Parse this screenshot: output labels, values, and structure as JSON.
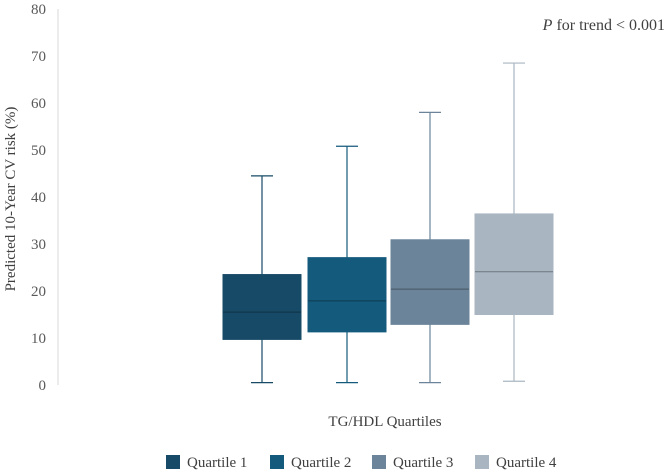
{
  "chart_data": {
    "type": "boxplot",
    "title": "",
    "xlabel": "TG/HDL Quartiles",
    "ylabel": "Predicted 10-Year CV risk (%)",
    "ylim": [
      0,
      80
    ],
    "yticks": [
      "0",
      "10",
      "20",
      "30",
      "40",
      "50",
      "60",
      "70",
      "80"
    ],
    "yticks_values": [
      0,
      10,
      20,
      30,
      40,
      50,
      60,
      70,
      80
    ],
    "grid": false,
    "legend_position": "bottom",
    "annotation": {
      "italic": "P",
      "rest": " for trend < 0.001"
    },
    "series": [
      {
        "name": "Quartile 1",
        "color": "#174a66",
        "min": 0.5,
        "q1": 9.7,
        "median": 15.5,
        "q3": 23.5,
        "max": 44.5
      },
      {
        "name": "Quartile 2",
        "color": "#145a7c",
        "min": 0.5,
        "q1": 11.3,
        "median": 17.9,
        "q3": 27.1,
        "max": 50.8
      },
      {
        "name": "Quartile 3",
        "color": "#6b8499",
        "min": 0.5,
        "q1": 12.9,
        "median": 20.4,
        "q3": 30.9,
        "max": 58.0
      },
      {
        "name": "Quartile 4",
        "color": "#a9b6c2",
        "min": 0.8,
        "q1": 15.0,
        "median": 24.1,
        "q3": 36.4,
        "max": 68.5
      }
    ]
  }
}
